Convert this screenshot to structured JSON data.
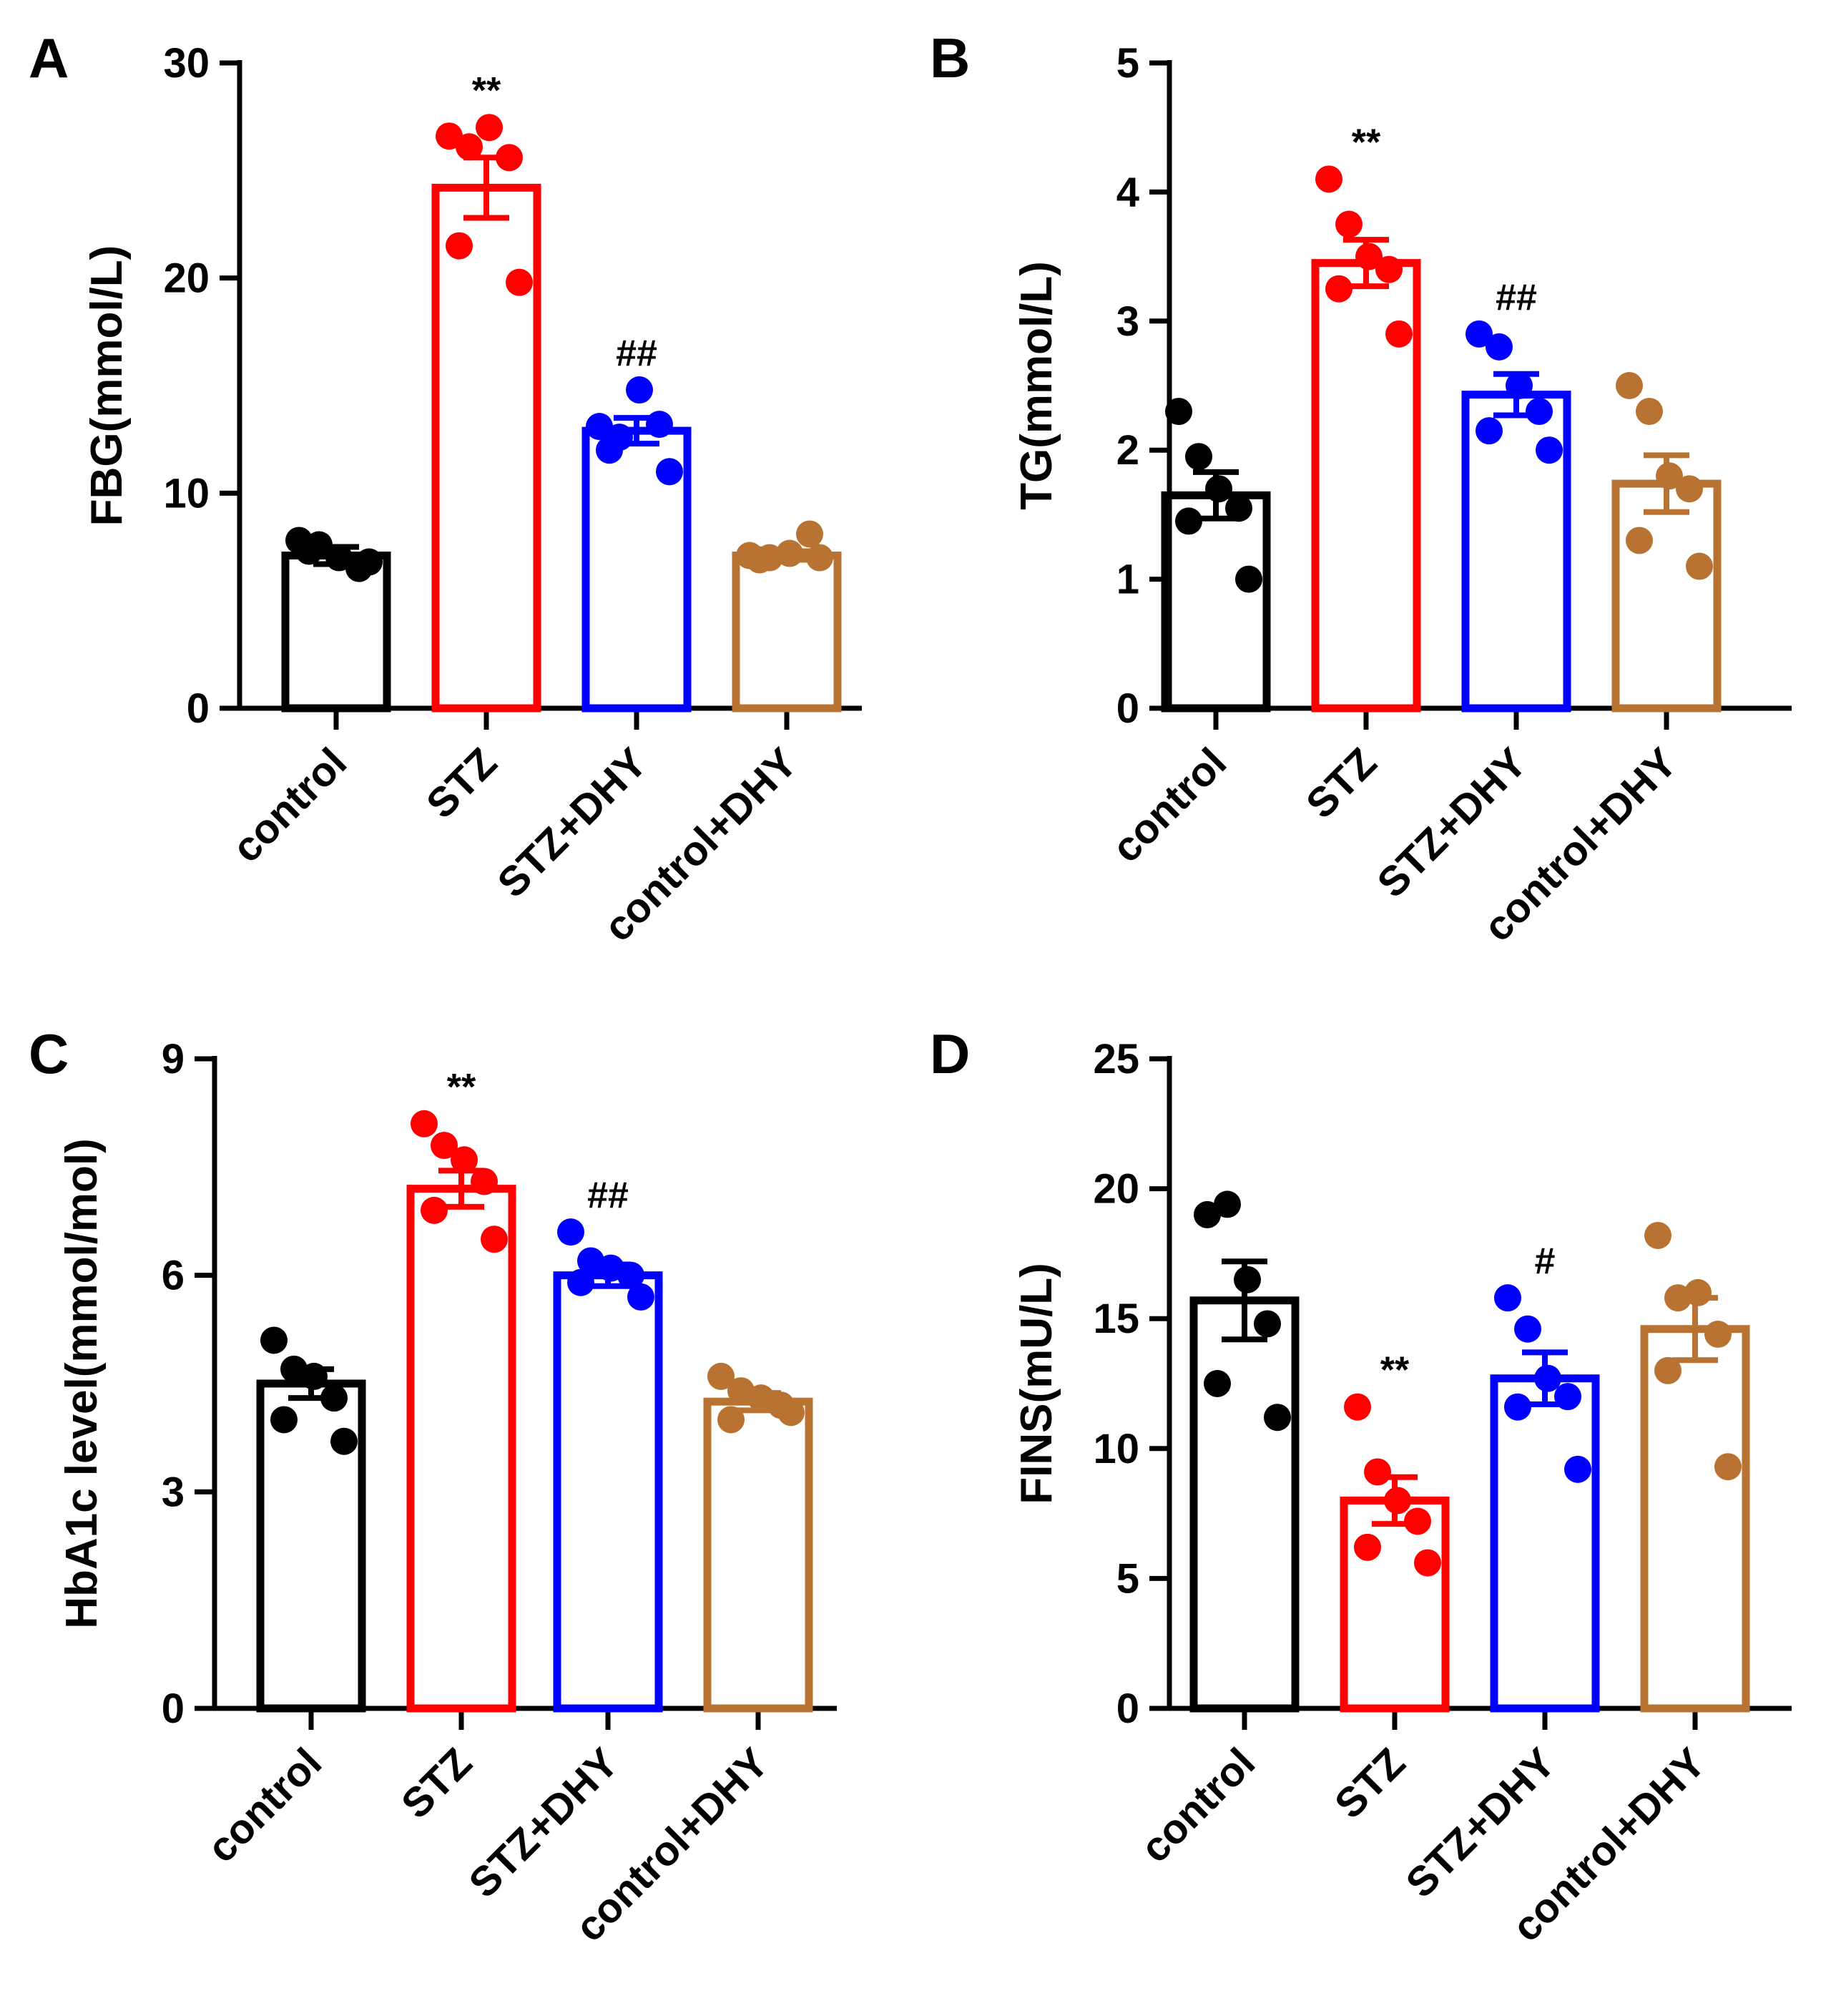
{
  "figure": {
    "colors": {
      "control": "#000000",
      "STZ": "#ff0000",
      "STZ+DHY": "#0000ff",
      "control+DHY": "#b87333"
    }
  },
  "chart_data": [
    {
      "panel": "A",
      "type": "bar",
      "ylabel": "FBG(mmol/L)",
      "ylim": [
        0,
        30
      ],
      "yticks": [
        "0",
        "10",
        "20",
        "30"
      ],
      "categories": [
        "control",
        "STZ",
        "STZ+DHY",
        "control+DHY"
      ],
      "values": [
        7.1,
        24.2,
        12.9,
        7.1
      ],
      "sem": [
        0.4,
        1.4,
        0.6,
        0.2
      ],
      "points": [
        [
          7.8,
          7.6,
          7.0,
          6.5,
          7.3,
          6.8
        ],
        [
          26.6,
          26.1,
          27.0,
          25.6,
          21.5,
          19.8
        ],
        [
          13.1,
          12.6,
          14.8,
          13.2,
          12.0,
          11.0
        ],
        [
          7.1,
          7.0,
          7.2,
          8.1,
          6.9,
          7.0
        ]
      ],
      "significance": [
        "",
        "**",
        "##",
        ""
      ]
    },
    {
      "panel": "B",
      "type": "bar",
      "ylabel": "TG(mmol/L)",
      "ylim": [
        0,
        5
      ],
      "yticks": [
        "0",
        "1",
        "2",
        "3",
        "4",
        "5"
      ],
      "categories": [
        "control",
        "STZ",
        "STZ+DHY",
        "control+DHY"
      ],
      "values": [
        1.65,
        3.45,
        2.43,
        1.74
      ],
      "sem": [
        0.18,
        0.18,
        0.16,
        0.22
      ],
      "points": [
        [
          2.3,
          1.95,
          1.7,
          1.55,
          1.45,
          1.0
        ],
        [
          4.1,
          3.75,
          3.5,
          3.4,
          3.25,
          2.9
        ],
        [
          2.9,
          2.8,
          2.5,
          2.3,
          2.15,
          2.0
        ],
        [
          2.5,
          2.3,
          1.8,
          1.7,
          1.3,
          1.1
        ]
      ],
      "significance": [
        "",
        "**",
        "##",
        ""
      ]
    },
    {
      "panel": "C",
      "type": "bar",
      "ylabel": "HbA1c level(mmol/mol)",
      "ylim": [
        0,
        9
      ],
      "yticks": [
        "0",
        "3",
        "6",
        "9"
      ],
      "categories": [
        "control",
        "STZ",
        "STZ+DHY",
        "control+DHY"
      ],
      "values": [
        4.5,
        7.2,
        6.0,
        4.25
      ],
      "sem": [
        0.2,
        0.25,
        0.15,
        0.12
      ],
      "points": [
        [
          5.1,
          4.7,
          4.6,
          4.3,
          4.0,
          3.7
        ],
        [
          8.1,
          7.8,
          7.6,
          7.3,
          6.9,
          6.5
        ],
        [
          6.6,
          6.2,
          6.1,
          6.0,
          5.9,
          5.7
        ],
        [
          4.6,
          4.4,
          4.3,
          4.2,
          4.0,
          4.1
        ]
      ],
      "significance": [
        "",
        "**",
        "##",
        ""
      ]
    },
    {
      "panel": "D",
      "type": "bar",
      "ylabel": "FINS(mU/L)",
      "ylim": [
        0,
        25
      ],
      "yticks": [
        "0",
        "5",
        "10",
        "15",
        "20",
        "25"
      ],
      "categories": [
        "control",
        "STZ",
        "STZ+DHY",
        "control+DHY"
      ],
      "values": [
        15.7,
        8.0,
        12.7,
        14.6
      ],
      "sem": [
        1.5,
        0.9,
        1.0,
        1.2
      ],
      "points": [
        [
          19.0,
          19.4,
          16.5,
          14.8,
          12.5,
          11.2
        ],
        [
          11.6,
          9.1,
          8.0,
          7.2,
          6.2,
          5.6
        ],
        [
          15.8,
          14.6,
          12.7,
          12.0,
          11.6,
          9.2
        ],
        [
          18.2,
          15.8,
          16.0,
          14.4,
          13.0,
          9.3
        ]
      ],
      "significance": [
        "",
        "**",
        "#",
        ""
      ]
    }
  ]
}
